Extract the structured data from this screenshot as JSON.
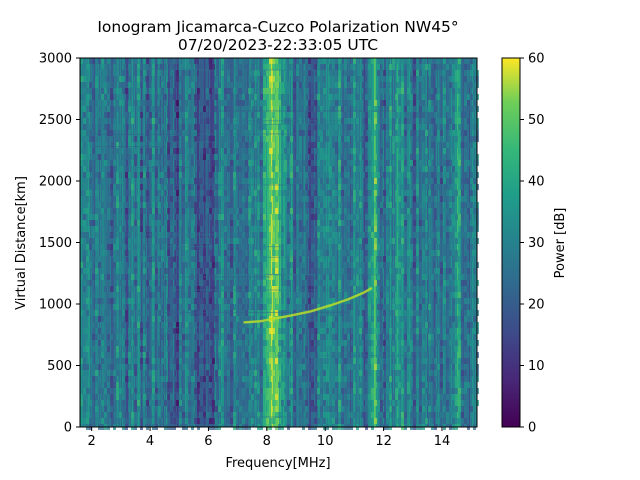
{
  "chart_data": {
    "type": "heatmap",
    "title_line1": "Ionogram Jicamarca-Cuzco Polarization NW45°",
    "title_line2": "07/20/2023-22:33:05 UTC",
    "xlabel": "Frequency[MHz]",
    "ylabel": "Virtual Distance[km]",
    "xlim": [
      1.6,
      15.2
    ],
    "ylim": [
      0,
      3000
    ],
    "x_ticks": [
      2,
      4,
      6,
      8,
      10,
      12,
      14
    ],
    "y_ticks": [
      0,
      500,
      1000,
      1500,
      2000,
      2500,
      3000
    ],
    "colorbar": {
      "label": "Power [dB]",
      "range": [
        0,
        60
      ],
      "ticks": [
        0,
        10,
        20,
        30,
        40,
        50,
        60
      ],
      "colormap": "viridis"
    },
    "bright_bands_mhz": [
      8.1,
      8.4,
      10.2,
      11.7,
      12.5,
      14.5
    ],
    "echo_trace": [
      {
        "f": 7.2,
        "d": 850
      },
      {
        "f": 7.8,
        "d": 860
      },
      {
        "f": 8.2,
        "d": 880
      },
      {
        "f": 8.8,
        "d": 905
      },
      {
        "f": 9.5,
        "d": 940
      },
      {
        "f": 10.2,
        "d": 990
      },
      {
        "f": 10.8,
        "d": 1040
      },
      {
        "f": 11.3,
        "d": 1090
      },
      {
        "f": 11.6,
        "d": 1130
      }
    ],
    "colors": {
      "cmap_low": "#440154",
      "cmap_mid": "#21918c",
      "cmap_high": "#fde725"
    }
  }
}
